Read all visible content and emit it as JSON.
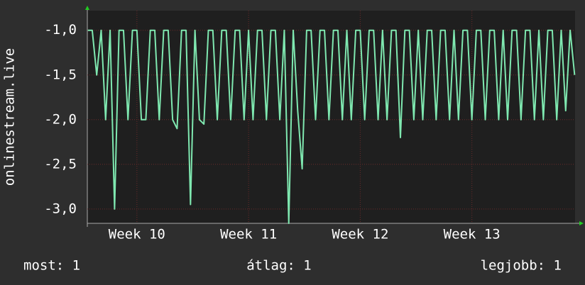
{
  "chart_data": {
    "type": "line",
    "y_label": "onlinestream.live",
    "x": [
      9.56,
      9.6,
      9.64,
      9.68,
      9.72,
      9.76,
      9.8,
      9.84,
      9.88,
      9.92,
      9.96,
      10,
      10.04,
      10.08,
      10.12,
      10.16,
      10.2,
      10.24,
      10.28,
      10.32,
      10.36,
      10.4,
      10.44,
      10.48,
      10.52,
      10.56,
      10.6,
      10.64,
      10.68,
      10.72,
      10.76,
      10.8,
      10.84,
      10.88,
      10.92,
      10.96,
      11,
      11.04,
      11.08,
      11.12,
      11.16,
      11.2,
      11.24,
      11.28,
      11.32,
      11.36,
      11.4,
      11.44,
      11.48,
      11.52,
      11.56,
      11.6,
      11.64,
      11.68,
      11.72,
      11.76,
      11.8,
      11.84,
      11.88,
      11.92,
      11.96,
      12,
      12.04,
      12.08,
      12.12,
      12.16,
      12.2,
      12.24,
      12.28,
      12.32,
      12.36,
      12.4,
      12.44,
      12.48,
      12.52,
      12.56,
      12.6,
      12.64,
      12.68,
      12.72,
      12.76,
      12.8,
      12.84,
      12.88,
      12.92,
      12.96,
      13,
      13.04,
      13.08,
      13.12,
      13.16,
      13.2,
      13.24,
      13.28,
      13.32,
      13.36,
      13.4,
      13.44,
      13.48,
      13.52,
      13.56,
      13.6,
      13.64,
      13.68,
      13.72,
      13.76,
      13.8,
      13.84,
      13.88,
      13.92
    ],
    "series": [
      {
        "color": "#7fe8b0",
        "values": [
          -1,
          -1,
          -1.5,
          -1,
          -2,
          -1,
          -3,
          -1,
          -1,
          -2,
          -1,
          -1,
          -2,
          -2,
          -1,
          -1,
          -2,
          -1,
          -1,
          -2,
          -2.1,
          -1,
          -1,
          -2.95,
          -1,
          -2,
          -2.05,
          -1,
          -1,
          -2,
          -1,
          -1,
          -2,
          -1,
          -1,
          -2,
          -1,
          -2,
          -1,
          -1,
          -2,
          -1,
          -1,
          -2,
          -1,
          -3.16,
          -1,
          -1.9,
          -2.55,
          -1,
          -1,
          -2,
          -1,
          -1,
          -2,
          -1,
          -1,
          -2,
          -1,
          -2,
          -1,
          -1,
          -2,
          -1,
          -1,
          -2,
          -1,
          -2,
          -1,
          -1,
          -2.2,
          -1,
          -1,
          -2,
          -1,
          -2,
          -1,
          -1,
          -2,
          -1,
          -1,
          -2,
          -1,
          -2,
          -1,
          -1,
          -2,
          -1,
          -1,
          -2,
          -1,
          -1,
          -2,
          -1,
          -2,
          -1,
          -1,
          -2,
          -1,
          -1,
          -2,
          -1,
          -2,
          -1,
          -1,
          -2,
          -1,
          -1.9,
          -1,
          -1.5
        ]
      }
    ],
    "xlim": [
      9.556,
      13.924
    ],
    "ylim": [
      -3.16,
      -0.78
    ],
    "xticks": [
      {
        "value": 10,
        "label": "Week 10"
      },
      {
        "value": 11,
        "label": "Week 11"
      },
      {
        "value": 12,
        "label": "Week 12"
      },
      {
        "value": 13,
        "label": "Week 13"
      }
    ],
    "yticks": [
      {
        "value": -1,
        "label": "-1,0"
      },
      {
        "value": -1.5,
        "label": "-1,5"
      },
      {
        "value": -2,
        "label": "-2,0"
      },
      {
        "value": -2.5,
        "label": "-2,5"
      },
      {
        "value": -3,
        "label": "-3,0"
      }
    ],
    "grid": true,
    "stats": [
      "most: 1",
      "átlag: 1",
      "legjobb: 1"
    ]
  }
}
